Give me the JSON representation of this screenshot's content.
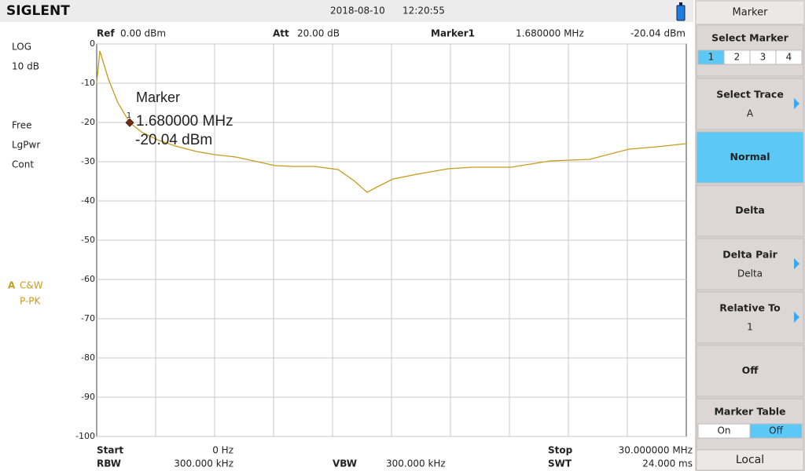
{
  "header": {
    "brand": "SIGLENT",
    "date": "2018-08-10",
    "time": "12:20:55"
  },
  "status": {
    "scale_type": "LOG",
    "scale": "10 dB",
    "trigger": "Free",
    "detect": "LgPwr",
    "sweep": "Cont",
    "trace_mode": "C&W",
    "detector": "P-PK"
  },
  "top_info": {
    "ref_label": "Ref",
    "ref": "0.00 dBm",
    "att_label": "Att",
    "att": "20.00 dB"
  },
  "marker_readout": {
    "label": "Marker1",
    "freq": "1.680000 MHz",
    "level": "-20.04 dBm"
  },
  "bottom_info": {
    "start_label": "Start",
    "start": "0 Hz",
    "stop_label": "Stop",
    "stop": "30.000000 MHz",
    "rbw_label": "RBW",
    "rbw": "300.000 kHz",
    "vbw_label": "VBW",
    "vbw": "300.000 kHz",
    "swt_label": "SWT",
    "swt": "24.000 ms"
  },
  "chart_data": {
    "type": "line",
    "x": [
      0,
      0.16,
      0.6,
      1.08,
      1.68,
      2.3,
      3.08,
      4.0,
      5.08,
      6.0,
      7.08,
      8.0,
      9.08,
      10.0,
      11.08,
      12.28,
      13.08,
      13.76,
      14.28,
      15.08,
      16.28,
      17.88,
      19.08,
      21.08,
      23.08,
      25.08,
      27.08,
      28.5,
      30
    ],
    "series": [
      {
        "name": "A",
        "color": "#c69c1c",
        "values": [
          -10,
          -1.8,
          -9,
          -15,
          -20.04,
          -22.5,
          -24.4,
          -26,
          -27.4,
          -28.2,
          -28.8,
          -29.8,
          -31,
          -31.2,
          -31.2,
          -32,
          -34.8,
          -37.8,
          -36.4,
          -34.4,
          -33.2,
          -31.8,
          -31.4,
          -31.4,
          -29.8,
          -29.4,
          -26.8,
          -26.2,
          -25.4
        ]
      }
    ],
    "xlim": [
      0,
      30
    ],
    "ylim": [
      -100,
      0
    ],
    "yticks": [
      0,
      -10,
      -20,
      -30,
      -40,
      -50,
      -60,
      -70,
      -80,
      -90,
      -100
    ],
    "grid": true,
    "marker": {
      "number": 1,
      "title": "Marker",
      "x": 1.68,
      "y": -20.04,
      "freq": "1.680000 MHz",
      "level": "-20.04 dBm"
    }
  },
  "softkeys": {
    "title": "Marker",
    "items": [
      {
        "label": "Select Marker",
        "options": [
          "1",
          "2",
          "3",
          "4"
        ],
        "selected": 0
      },
      {
        "label": "Select Trace",
        "sub": "A",
        "arrow": true
      },
      {
        "label": "Normal",
        "active": true
      },
      {
        "label": "Delta"
      },
      {
        "label": "Delta Pair",
        "sub": "Delta",
        "arrow": true
      },
      {
        "label": "Relative To",
        "sub": "1",
        "arrow": true
      },
      {
        "label": "Off"
      },
      {
        "label": "Marker Table",
        "options": [
          "On",
          "Off"
        ],
        "selected": 1
      }
    ],
    "footer": "Local"
  }
}
